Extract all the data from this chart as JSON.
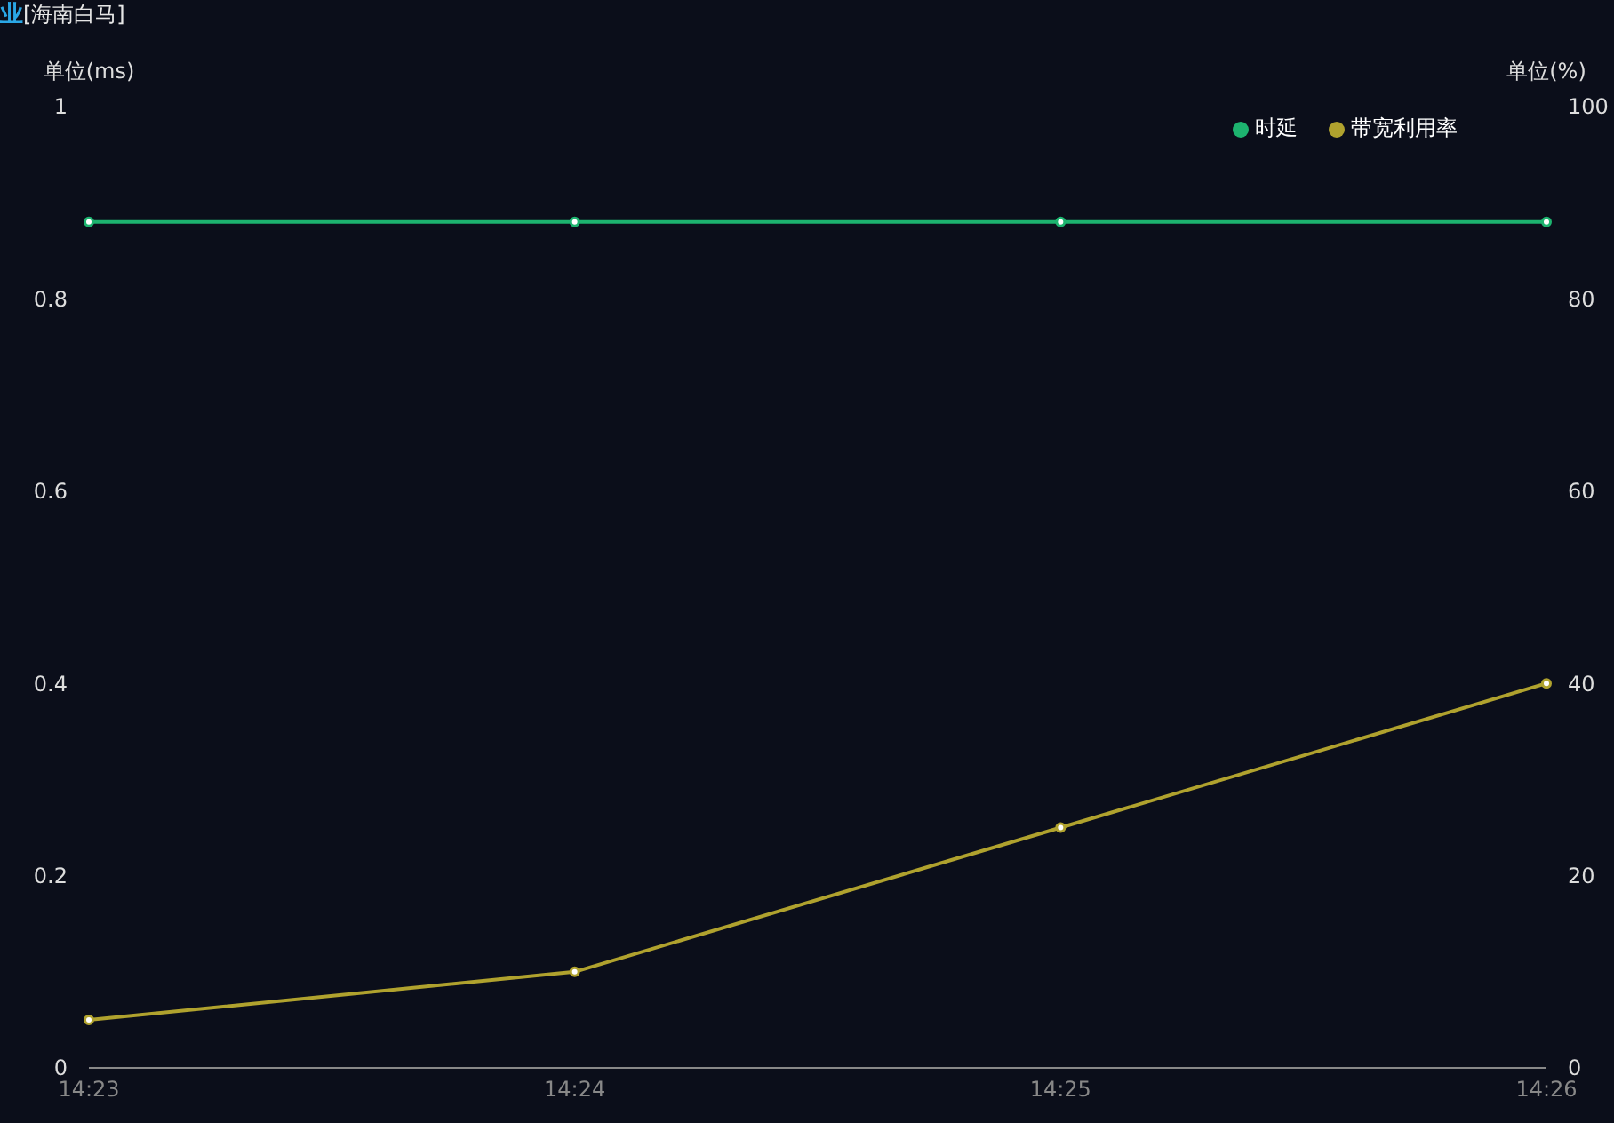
{
  "chart_data": {
    "type": "line",
    "title": "业",
    "subtitle": "[海南白马]",
    "ylabel": "单位(ms)",
    "y2label": "单位(%)",
    "categories": [
      "14:23",
      "14:24",
      "14:25",
      "14:26"
    ],
    "series": [
      {
        "name": "时延",
        "color": "#1db36f",
        "values": [
          0.88,
          0.88,
          0.88,
          0.88
        ]
      },
      {
        "name": "带宽利用率",
        "color": "#b0a22e",
        "axis": "y2",
        "values": [
          5,
          10,
          25,
          40
        ]
      }
    ],
    "ylim": [
      0,
      1
    ],
    "yticks": [
      0,
      0.2,
      0.4,
      0.6,
      0.8,
      1
    ],
    "y2lim": [
      0,
      100
    ],
    "y2ticks": [
      0,
      20,
      40,
      60,
      80,
      100
    ],
    "marker": "circle",
    "grid": false,
    "legend": "top right"
  }
}
